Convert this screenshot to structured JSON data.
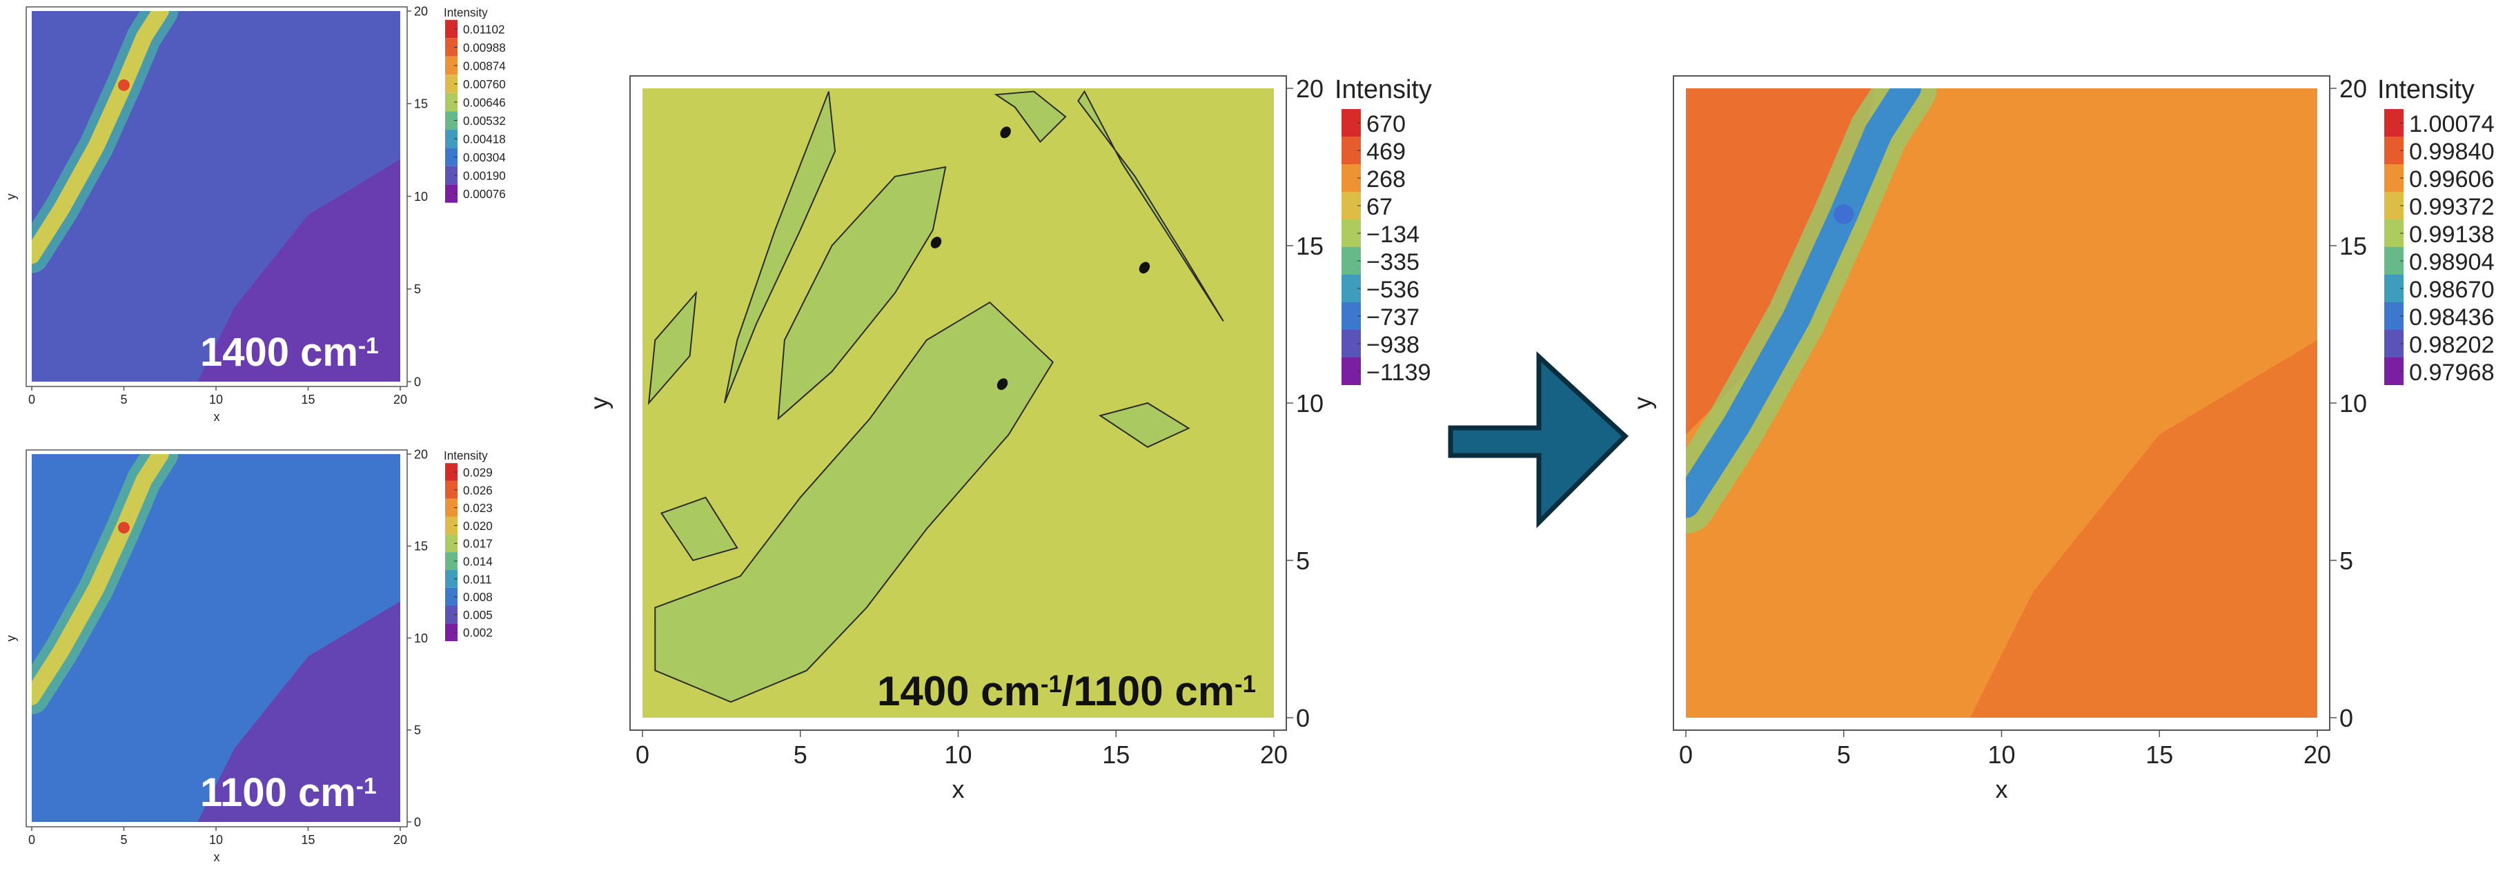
{
  "colors": {
    "spectral": [
      "#7b1fa2",
      "#5e4fb4",
      "#3f6fd0",
      "#3b92c8",
      "#4bb0a3",
      "#8bc56b",
      "#c8cf56",
      "#e9b43e",
      "#ef8a30",
      "#e6562b",
      "#d72b2b"
    ],
    "frame": "#555555",
    "arrow_fill": "#166284",
    "arrow_stroke": "#0b2e3e",
    "contour": "#2d2d2d"
  },
  "arrow": {
    "icon": "right-arrow-icon"
  },
  "chart_data": [
    {
      "id": "small-top",
      "type": "heatmap",
      "title": "",
      "xlabel": "x",
      "ylabel": "y",
      "xlim": [
        0,
        20
      ],
      "ylim": [
        0,
        20
      ],
      "xticks": [
        "0",
        "5",
        "10",
        "15",
        "20"
      ],
      "yticks": [
        "0",
        "5",
        "10",
        "15",
        "20"
      ],
      "legend_title": "Intensity",
      "legend_placement": "right",
      "legend_values": [
        "0.01102",
        "0.00988",
        "0.00874",
        "0.00760",
        "0.00646",
        "0.00532",
        "0.00418",
        "0.00304",
        "0.00190",
        "0.00076"
      ],
      "annotation": {
        "base": "1400 cm",
        "sup": "-1"
      },
      "background_level": 0.14,
      "lower_right_level": 0.05,
      "band": {
        "level": 0.62,
        "peak_level": 0.93,
        "path_x": [
          0.0,
          1.6,
          3.5,
          5.0,
          6.1,
          7.0
        ],
        "path_y": [
          6.8,
          9.3,
          12.7,
          16.0,
          18.6,
          20.0
        ]
      }
    },
    {
      "id": "small-bottom",
      "type": "heatmap",
      "title": "",
      "xlabel": "x",
      "ylabel": "y",
      "xlim": [
        0,
        20
      ],
      "ylim": [
        0,
        20
      ],
      "xticks": [
        "0",
        "5",
        "10",
        "15",
        "20"
      ],
      "yticks": [
        "0",
        "5",
        "10",
        "15",
        "20"
      ],
      "legend_title": "Intensity",
      "legend_placement": "right",
      "legend_values": [
        "0.029",
        "0.026",
        "0.023",
        "0.020",
        "0.017",
        "0.014",
        "0.011",
        "0.008",
        "0.005",
        "0.002"
      ],
      "annotation": {
        "base": "1100 cm",
        "sup": "-1"
      },
      "background_level": 0.22,
      "lower_right_level": 0.06,
      "band": {
        "level": 0.62,
        "peak_level": 0.95,
        "path_x": [
          0.0,
          1.6,
          3.5,
          5.0,
          6.1,
          7.0
        ],
        "path_y": [
          6.8,
          9.3,
          12.7,
          16.0,
          18.6,
          20.0
        ]
      }
    },
    {
      "id": "ratio-contour",
      "type": "heatmap",
      "title": "",
      "xlabel": "x",
      "ylabel": "y",
      "xlim": [
        0,
        20
      ],
      "ylim": [
        0,
        20
      ],
      "xticks": [
        "0",
        "5",
        "10",
        "15",
        "20"
      ],
      "yticks": [
        "0",
        "5",
        "10",
        "15",
        "20"
      ],
      "legend_title": "Intensity",
      "legend_placement": "right",
      "legend_values": [
        "670",
        "469",
        "268",
        "67",
        "−134",
        "−335",
        "−536",
        "−737",
        "−938",
        "−1139"
      ],
      "annotation": {
        "base": "1400 cm",
        "sup": "-1",
        "base2": "/1100 cm",
        "sup2": "-1"
      },
      "background_level": 0.6,
      "contour_regions": [
        {
          "x": [
            0.4,
            2.8,
            5.2,
            7.1,
            9.0,
            11.6,
            13.0,
            11.0,
            9.0,
            7.2,
            5.0,
            3.1,
            0.4
          ],
          "y": [
            1.5,
            0.5,
            1.5,
            3.5,
            6.0,
            9.0,
            11.3,
            13.2,
            12.0,
            9.5,
            7.0,
            4.5,
            3.5
          ]
        },
        {
          "x": [
            4.3,
            6.0,
            8.0,
            9.2,
            9.6,
            8.0,
            6.0,
            4.5
          ],
          "y": [
            9.5,
            11.0,
            13.5,
            15.5,
            17.5,
            17.2,
            15.0,
            12.0
          ]
        },
        {
          "x": [
            5.9,
            6.1,
            5.0,
            3.6,
            2.6,
            3.0,
            4.2
          ],
          "y": [
            19.9,
            18.0,
            15.5,
            12.5,
            10.0,
            12.0,
            15.5
          ]
        },
        {
          "x": [
            11.8,
            12.6,
            13.4,
            12.4,
            11.2
          ],
          "y": [
            19.4,
            18.3,
            19.1,
            19.9,
            19.8
          ]
        },
        {
          "x": [
            13.8,
            15.6,
            17.2,
            18.4,
            17.0,
            15.2,
            14.0
          ],
          "y": [
            19.6,
            17.2,
            14.6,
            12.6,
            14.8,
            17.6,
            19.9
          ]
        },
        {
          "x": [
            0.2,
            1.5,
            1.7,
            0.4
          ],
          "y": [
            10.0,
            11.5,
            13.5,
            12.0
          ]
        },
        {
          "x": [
            14.5,
            16.0,
            17.3,
            16.0
          ],
          "y": [
            9.6,
            10.0,
            9.2,
            8.6
          ]
        },
        {
          "x": [
            0.6,
            2.0,
            3.0,
            1.6
          ],
          "y": [
            6.5,
            7.0,
            5.4,
            5.0
          ]
        }
      ],
      "dark_spots": [
        {
          "x": 9.3,
          "y": 15.1
        },
        {
          "x": 11.4,
          "y": 10.6
        },
        {
          "x": 11.5,
          "y": 18.6
        },
        {
          "x": 15.9,
          "y": 14.3
        }
      ]
    },
    {
      "id": "ratio-map",
      "type": "heatmap",
      "title": "",
      "xlabel": "x",
      "ylabel": "y",
      "xlim": [
        0,
        20
      ],
      "ylim": [
        0,
        20
      ],
      "xticks": [
        "0",
        "5",
        "10",
        "15",
        "20"
      ],
      "yticks": [
        "0",
        "5",
        "10",
        "15",
        "20"
      ],
      "legend_title": "Intensity",
      "legend_placement": "right",
      "legend_values": [
        "1.00074",
        "0.99840",
        "0.99606",
        "0.99372",
        "0.99138",
        "0.98904",
        "0.98670",
        "0.98436",
        "0.98202",
        "0.97968"
      ],
      "background_level": 0.78,
      "upper_left_level": 0.86,
      "lower_right_level": 0.84,
      "band": {
        "level": 0.28,
        "peak_level": 0.2,
        "path_x": [
          0.0,
          1.6,
          3.5,
          5.0,
          6.1,
          7.0
        ],
        "path_y": [
          6.8,
          9.3,
          12.7,
          16.0,
          18.6,
          20.0
        ]
      }
    }
  ]
}
